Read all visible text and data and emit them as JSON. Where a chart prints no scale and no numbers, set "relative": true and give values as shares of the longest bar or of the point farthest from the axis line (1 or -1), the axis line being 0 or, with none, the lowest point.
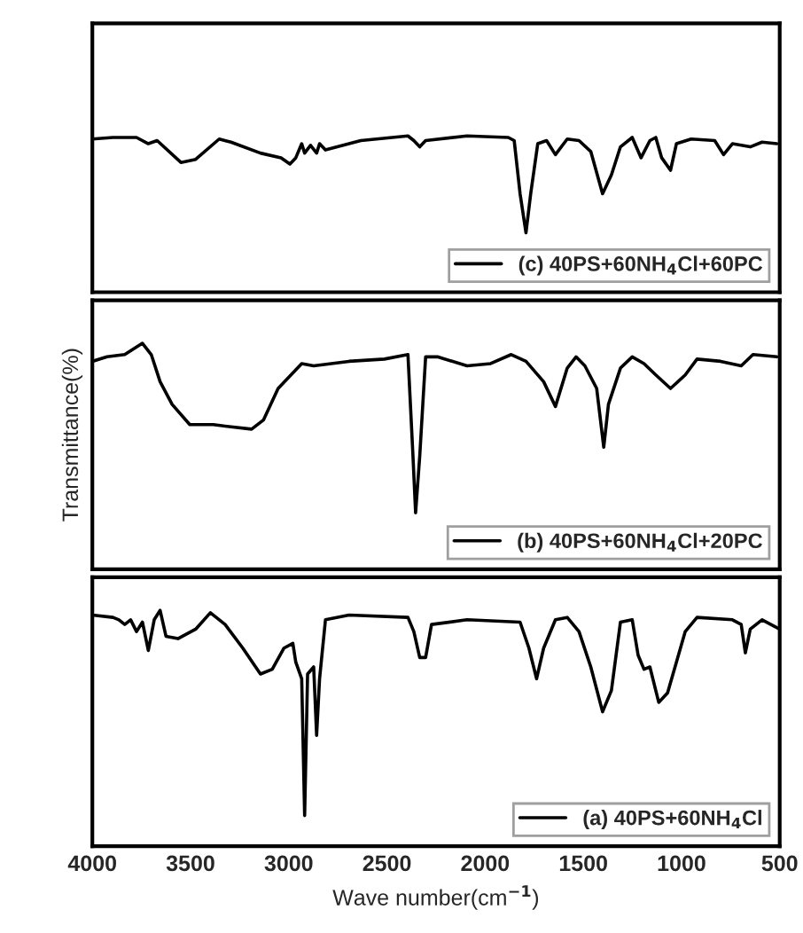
{
  "chart_data": [
    {
      "type": "line",
      "relative": true,
      "xlim": [
        4000,
        500
      ],
      "tick_labels": false,
      "legend": "bottom right",
      "grid": false,
      "x": [
        4000,
        3895,
        3775,
        3715,
        3670,
        3549,
        3474,
        3354,
        3294,
        3144,
        3039,
        2994,
        2964,
        2934,
        2919,
        2889,
        2858,
        2843,
        2813,
        2633,
        2393,
        2363,
        2333,
        2303,
        2092,
        1882,
        1852,
        1822,
        1792,
        1768,
        1732,
        1687,
        1642,
        1582,
        1522,
        1462,
        1402,
        1357,
        1311,
        1251,
        1206,
        1161,
        1131,
        1101,
        1056,
        1026,
        951,
        831,
        786,
        741,
        650,
        590,
        515
      ],
      "series": [
        {
          "name": "(c) 40PS+60NH$_{4}$Cl+60PC",
          "color": "#000000",
          "values": [
            0.98,
            0.99,
            0.99,
            0.95,
            0.97,
            0.83,
            0.85,
            0.98,
            0.96,
            0.89,
            0.86,
            0.82,
            0.86,
            0.95,
            0.89,
            0.94,
            0.89,
            0.95,
            0.91,
            0.97,
            1.0,
            0.97,
            0.93,
            0.97,
            1.0,
            0.99,
            0.97,
            0.63,
            0.38,
            0.63,
            0.95,
            0.97,
            0.88,
            0.98,
            0.97,
            0.9,
            0.63,
            0.75,
            0.93,
            0.99,
            0.86,
            0.97,
            0.99,
            0.86,
            0.78,
            0.95,
            0.98,
            0.97,
            0.88,
            0.95,
            0.93,
            0.96,
            0.95
          ]
        }
      ]
    },
    {
      "type": "line",
      "relative": true,
      "xlim": [
        4000,
        500
      ],
      "tick_labels": false,
      "legend": "bottom right",
      "grid": false,
      "ylabel": "Transmittance(%)",
      "x": [
        4000,
        3925,
        3835,
        3745,
        3700,
        3655,
        3594,
        3504,
        3384,
        3294,
        3189,
        3129,
        3054,
        2934,
        2873,
        2693,
        2513,
        2393,
        2369,
        2354,
        2333,
        2303,
        2243,
        2092,
        1972,
        1867,
        1792,
        1702,
        1642,
        1582,
        1537,
        1492,
        1432,
        1396,
        1372,
        1311,
        1251,
        1191,
        1131,
        1056,
        981,
        921,
        801,
        696,
        636,
        515
      ],
      "series": [
        {
          "name": "(b) 40PS+60NH$_{4}$Cl+20PC",
          "color": "#000000",
          "values": [
            0.92,
            0.94,
            0.95,
            1.0,
            0.95,
            0.83,
            0.73,
            0.64,
            0.64,
            0.63,
            0.62,
            0.66,
            0.8,
            0.91,
            0.9,
            0.92,
            0.93,
            0.95,
            0.53,
            0.25,
            0.5,
            0.94,
            0.94,
            0.9,
            0.91,
            0.95,
            0.92,
            0.83,
            0.72,
            0.89,
            0.94,
            0.9,
            0.8,
            0.54,
            0.73,
            0.89,
            0.94,
            0.91,
            0.86,
            0.8,
            0.86,
            0.93,
            0.92,
            0.9,
            0.95,
            0.94
          ]
        }
      ]
    },
    {
      "type": "line",
      "relative": true,
      "xlim": [
        4000,
        500
      ],
      "xticks": [
        4000,
        3500,
        3000,
        2500,
        2000,
        1500,
        1000,
        500
      ],
      "tick_labels": "x",
      "legend": "bottom right",
      "grid": false,
      "xlabel": "Wave number(cm$^{−1}$)",
      "x": [
        4000,
        3895,
        3865,
        3835,
        3805,
        3775,
        3745,
        3715,
        3685,
        3655,
        3625,
        3564,
        3474,
        3399,
        3324,
        3234,
        3144,
        3084,
        3024,
        2979,
        2964,
        2934,
        2919,
        2904,
        2873,
        2858,
        2843,
        2813,
        2693,
        2393,
        2363,
        2333,
        2303,
        2273,
        2092,
        1822,
        1777,
        1738,
        1702,
        1642,
        1582,
        1522,
        1462,
        1402,
        1357,
        1311,
        1251,
        1221,
        1191,
        1161,
        1116,
        1071,
        981,
        921,
        741,
        696,
        675,
        650,
        590,
        500
      ],
      "series": [
        {
          "name": "(a) 40PS+60NH$_{4}$Cl",
          "color": "#000000",
          "values": [
            0.98,
            0.97,
            0.96,
            0.94,
            0.96,
            0.91,
            0.95,
            0.83,
            0.96,
            1.0,
            0.89,
            0.88,
            0.92,
            0.99,
            0.94,
            0.84,
            0.73,
            0.75,
            0.84,
            0.86,
            0.78,
            0.71,
            0.13,
            0.73,
            0.76,
            0.47,
            0.71,
            0.96,
            0.98,
            0.97,
            0.91,
            0.8,
            0.8,
            0.94,
            0.96,
            0.95,
            0.84,
            0.71,
            0.84,
            0.96,
            0.97,
            0.91,
            0.76,
            0.57,
            0.66,
            0.95,
            0.96,
            0.81,
            0.75,
            0.76,
            0.61,
            0.65,
            0.91,
            0.97,
            0.96,
            0.94,
            0.82,
            0.92,
            0.96,
            0.92
          ]
        }
      ]
    }
  ]
}
